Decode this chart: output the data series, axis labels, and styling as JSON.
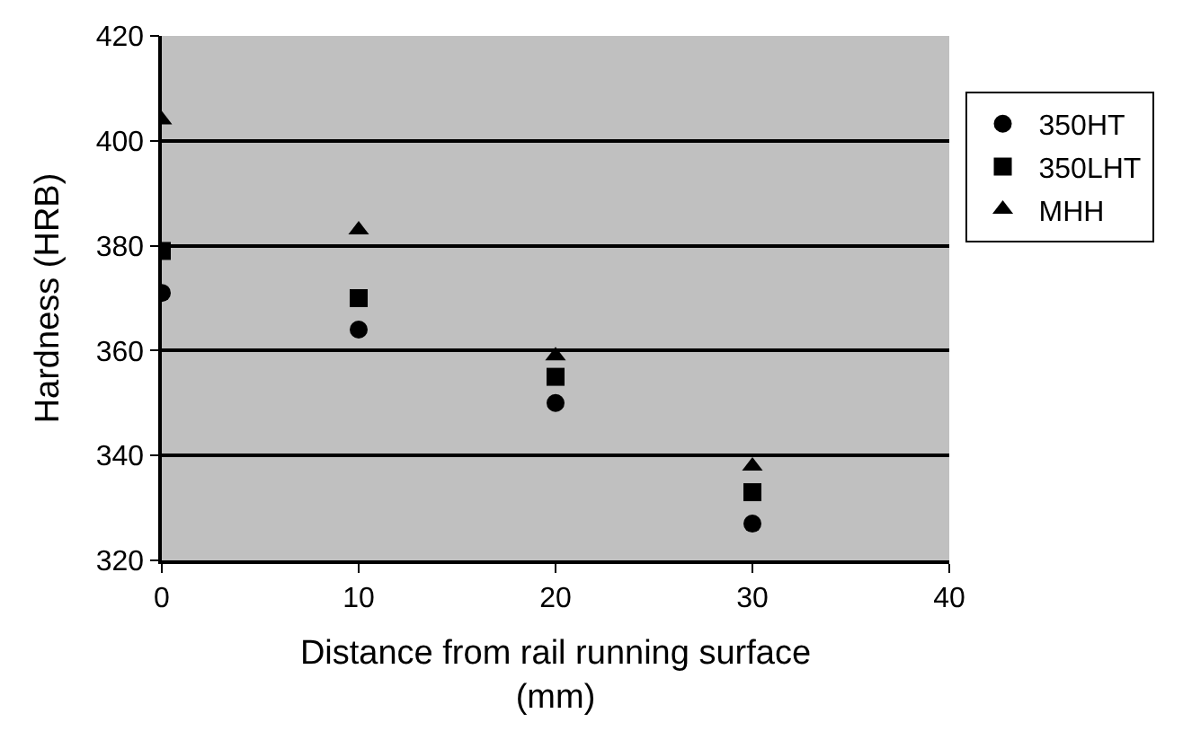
{
  "chart_data": {
    "type": "scatter",
    "xlabel": "Distance from rail running surface\n(mm)",
    "ylabel": "Hardness (HRB)",
    "x": [
      0,
      10,
      20,
      30
    ],
    "series": [
      {
        "name": "350HT",
        "color": "#000000",
        "marker": "circle",
        "values": [
          371,
          364,
          350,
          327
        ]
      },
      {
        "name": "350LHT",
        "color": "#000000",
        "marker": "square",
        "values": [
          379,
          370,
          355,
          333
        ]
      },
      {
        "name": "MHH",
        "color": "#000000",
        "marker": "triangle",
        "values": [
          404,
          383,
          359,
          338
        ]
      }
    ],
    "xlim": [
      0,
      40
    ],
    "xticks": [
      0,
      10,
      20,
      30,
      40
    ],
    "ylim": [
      320,
      420
    ],
    "yticks": [
      320,
      340,
      360,
      380,
      400,
      420
    ],
    "grid": "y",
    "legend": "right"
  }
}
